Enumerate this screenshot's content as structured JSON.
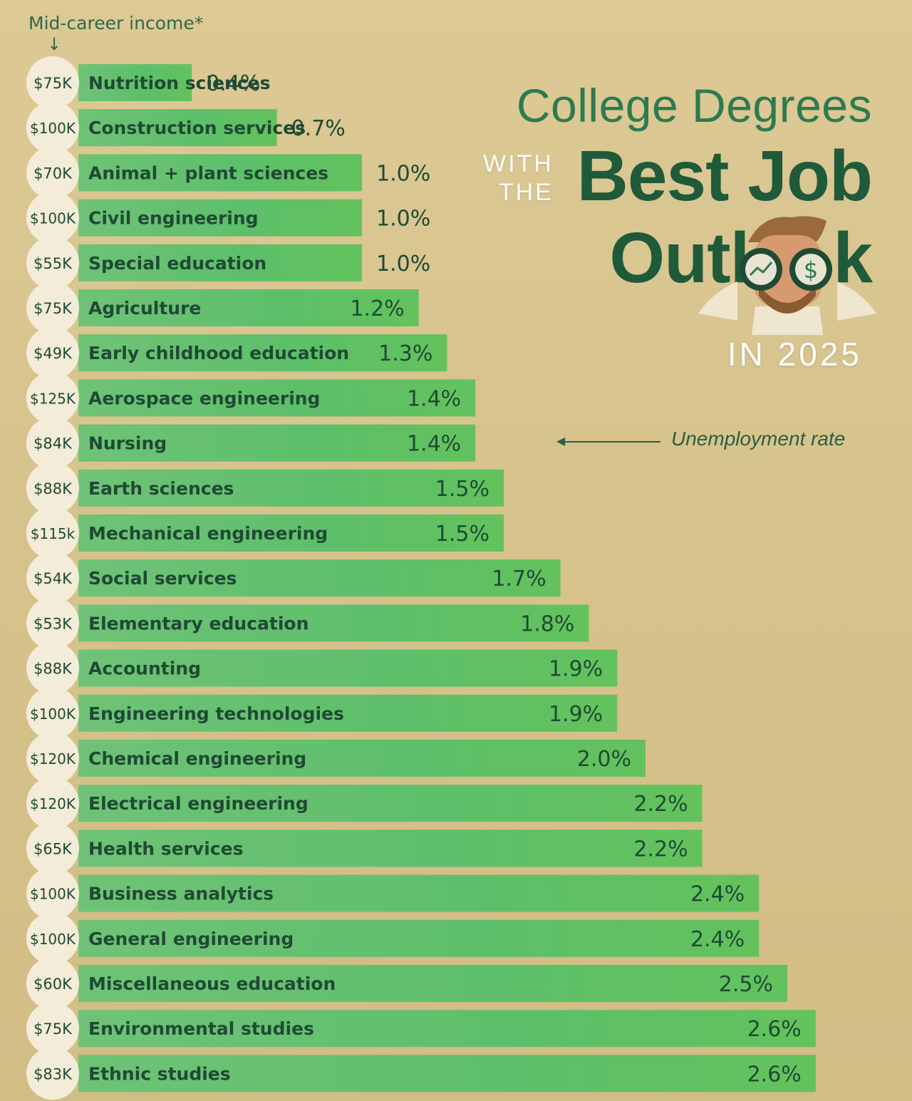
{
  "header": {
    "y_label": "Mid-career income*",
    "title_line1": "College Degrees",
    "title_with": "WITH",
    "title_the": "THE",
    "title_line2": "Best Job",
    "title_line3a": "Outl",
    "title_line3b": "k",
    "title_year": "IN 2025",
    "annotation": "Unemployment rate"
  },
  "colors": {
    "background": "#d8c48f",
    "bar": "#5dbf6a",
    "circle": "#f3ecd9",
    "text_dark": "#1f4a33"
  },
  "chart_data": {
    "type": "bar",
    "orientation": "horizontal",
    "categories": [
      "Nutrition sciences",
      "Construction services",
      "Animal + plant sciences",
      "Civil engineering",
      "Special education",
      "Agriculture",
      "Early childhood education",
      "Aerospace engineering",
      "Nursing",
      "Earth sciences",
      "Mechanical engineering",
      "Social services",
      "Elementary education",
      "Accounting",
      "Engineering technologies",
      "Chemical engineering",
      "Electrical engineering",
      "Health services",
      "Business analytics",
      "General engineering",
      "Miscellaneous education",
      "Environmental studies",
      "Ethnic studies"
    ],
    "values": [
      0.4,
      0.7,
      1.0,
      1.0,
      1.0,
      1.2,
      1.3,
      1.4,
      1.4,
      1.5,
      1.5,
      1.7,
      1.8,
      1.9,
      1.9,
      2.0,
      2.2,
      2.2,
      2.4,
      2.4,
      2.5,
      2.6,
      2.6
    ],
    "value_labels": [
      "0.4%",
      "0.7%",
      "1.0%",
      "1.0%",
      "1.0%",
      "1.2%",
      "1.3%",
      "1.4%",
      "1.4%",
      "1.5%",
      "1.5%",
      "1.7%",
      "1.8%",
      "1.9%",
      "1.9%",
      "2.0%",
      "2.2%",
      "2.2%",
      "2.4%",
      "2.4%",
      "2.5%",
      "2.6%",
      "2.6%"
    ],
    "incomes": [
      "$75K",
      "$100K",
      "$70K",
      "$100K",
      "$55K",
      "$75K",
      "$49K",
      "$125K",
      "$84K",
      "$88K",
      "$115k",
      "$54K",
      "$53K",
      "$88K",
      "$100K",
      "$120K",
      "$120K",
      "$65K",
      "$100K",
      "$100K",
      "$60K",
      "$75K",
      "$83K"
    ],
    "income_values": [
      75,
      100,
      70,
      100,
      55,
      75,
      49,
      125,
      84,
      88,
      115,
      54,
      53,
      88,
      100,
      120,
      120,
      65,
      100,
      100,
      60,
      75,
      83
    ],
    "title": "College Degrees WITH THE Best Job Outlook IN 2025",
    "series_label": "Unemployment rate",
    "income_label": "Mid-career income*"
  }
}
